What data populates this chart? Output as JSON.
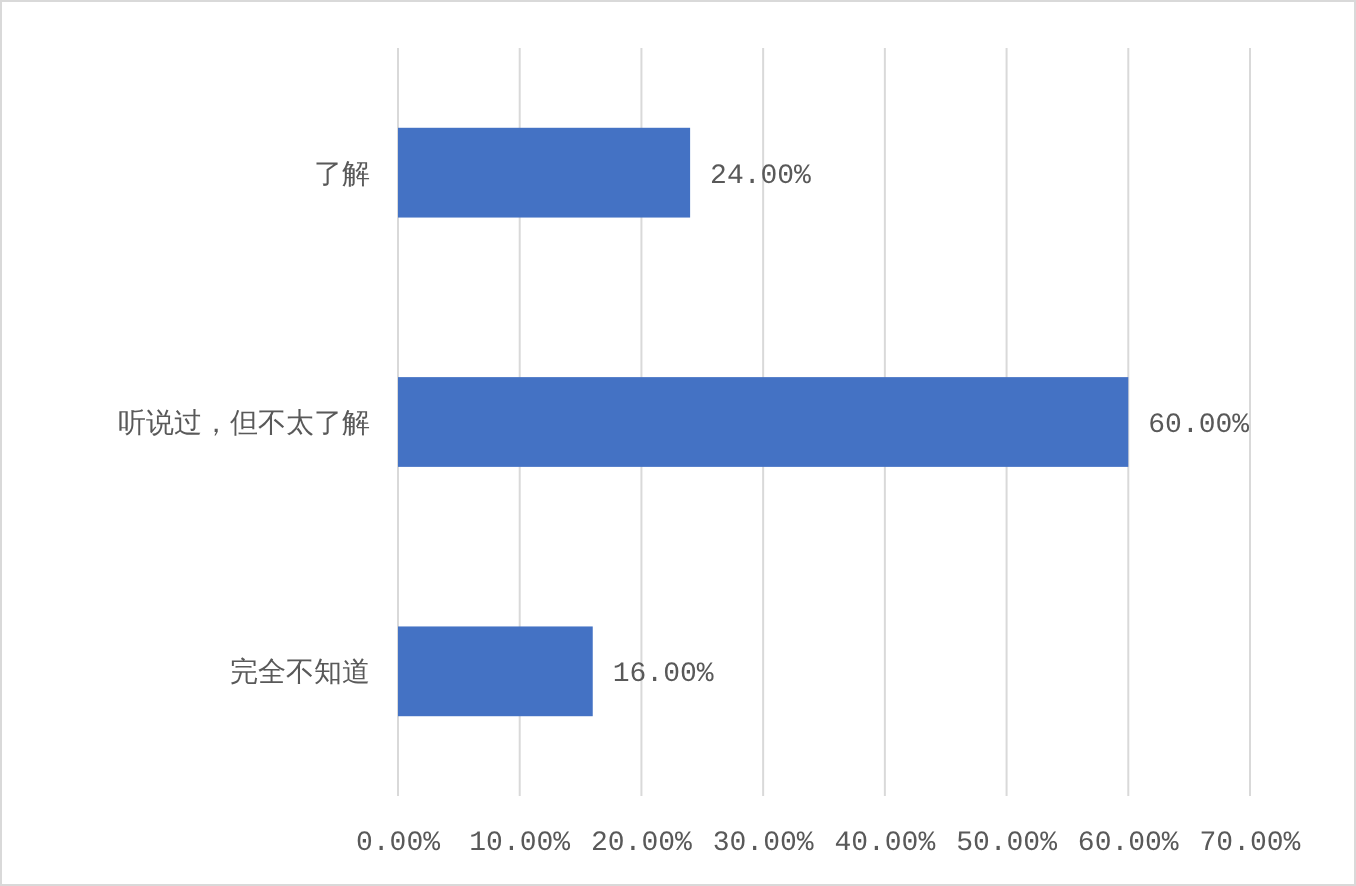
{
  "chart_data": {
    "type": "bar",
    "orientation": "horizontal",
    "categories": [
      "了解",
      "听说过，但不太了解",
      "完全不知道"
    ],
    "values": [
      24,
      60,
      16
    ],
    "color": "#4472c4",
    "value_labels": [
      "24.00%",
      "60.00%",
      "16.00%"
    ],
    "xlim": [
      0,
      70
    ],
    "xticks": [
      {
        "value": 0,
        "label": "0.00%"
      },
      {
        "value": 10,
        "label": "10.00%"
      },
      {
        "value": 20,
        "label": "20.00%"
      },
      {
        "value": 30,
        "label": "30.00%"
      },
      {
        "value": 40,
        "label": "40.00%"
      },
      {
        "value": 50,
        "label": "50.00%"
      },
      {
        "value": 60,
        "label": "60.00%"
      },
      {
        "value": 70,
        "label": "70.00%"
      }
    ],
    "grid": "x"
  }
}
